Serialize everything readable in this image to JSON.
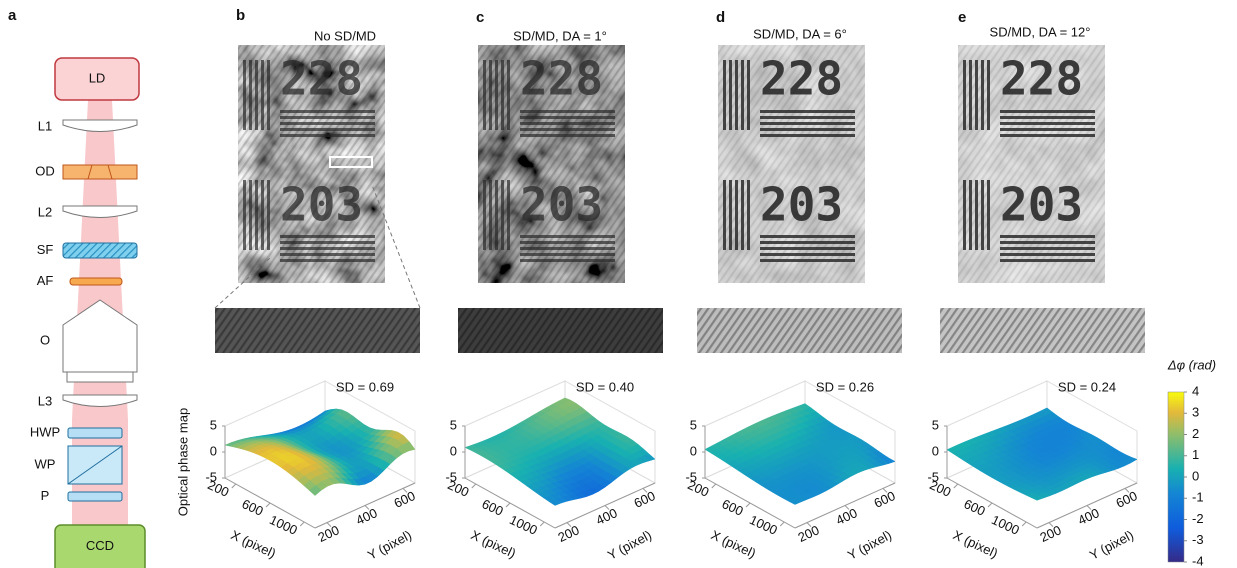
{
  "panel_labels": [
    "a",
    "b",
    "c",
    "d",
    "e"
  ],
  "setup": {
    "components": [
      "LD",
      "L1",
      "OD",
      "L2",
      "SF",
      "AF",
      "O",
      "L3",
      "HWP",
      "WP",
      "P",
      "CCD"
    ]
  },
  "columns": [
    {
      "title": "No SD/MD",
      "sd": "SD = 0.69"
    },
    {
      "title": "SD/MD, DA = 1°",
      "sd": "SD = 0.40"
    },
    {
      "title": "SD/MD, DA = 6°",
      "sd": "SD = 0.26"
    },
    {
      "title": "SD/MD, DA = 12°",
      "sd": "SD = 0.24"
    }
  ],
  "target_digits": [
    "228",
    "203"
  ],
  "surface_plot": {
    "z_label": "Optical phase map",
    "x_label": "X (pixel)",
    "y_label": "Y (pixel)",
    "zticks": [
      5,
      0,
      -5
    ],
    "xticks": [
      200,
      600,
      1000
    ],
    "yticks": [
      200,
      400,
      600
    ]
  },
  "colorbar": {
    "label": "Δφ (rad)",
    "ticks": [
      4,
      3,
      2,
      1,
      0,
      -1,
      -2,
      -3,
      -4
    ]
  }
}
